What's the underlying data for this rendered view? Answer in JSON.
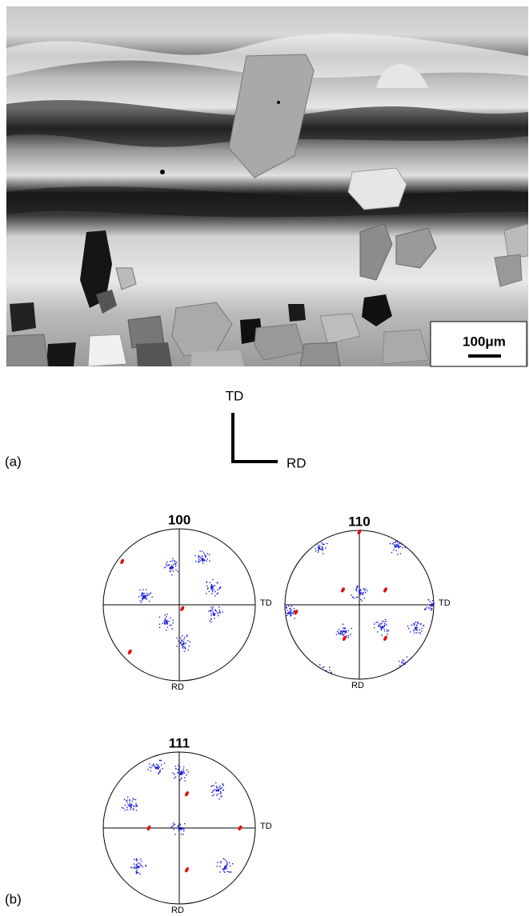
{
  "figure_a": {
    "scale_bar": "100μm",
    "axis_vertical": "TD",
    "axis_horizontal": "RD",
    "panel_label": "(a)"
  },
  "figure_b": {
    "panel_label": "(b)",
    "pole_figures": [
      {
        "title": "100",
        "right_label": "TD",
        "bottom_label": "RD"
      },
      {
        "title": "110",
        "right_label": "TD",
        "bottom_label": "RD"
      },
      {
        "title": "111",
        "right_label": "TD",
        "bottom_label": "RD"
      }
    ]
  }
}
